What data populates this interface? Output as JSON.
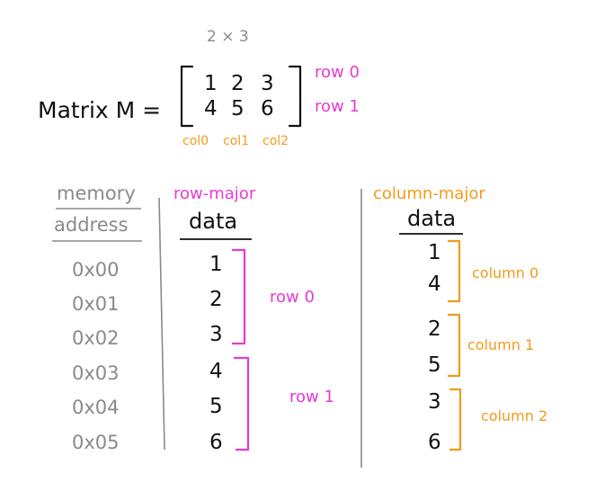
{
  "colors": {
    "ink": "#111111",
    "gray": "#8a8a8a",
    "row_major": "#e83ad0",
    "column_major": "#f29a1c"
  },
  "matrix": {
    "dims": "2 × 3",
    "label": "Matrix M  =",
    "rows": [
      [
        "1",
        "2",
        "3"
      ],
      [
        "4",
        "5",
        "6"
      ]
    ],
    "row_labels": [
      "row 0",
      "row 1"
    ],
    "col_labels": [
      "col0",
      "col1",
      "col2"
    ]
  },
  "memory": {
    "header_line1": "memory",
    "header_line2": "address",
    "addresses": [
      "0x00",
      "0x01",
      "0x02",
      "0x03",
      "0x04",
      "0x05"
    ]
  },
  "row_major": {
    "title": "row-major",
    "header": "data",
    "values": [
      "1",
      "2",
      "3",
      "4",
      "5",
      "6"
    ],
    "groups": [
      "row 0",
      "row 1"
    ]
  },
  "column_major": {
    "title": "column-major",
    "header": "data",
    "values": [
      "1",
      "4",
      "2",
      "5",
      "3",
      "6"
    ],
    "groups": [
      "column 0",
      "column 1",
      "column 2"
    ]
  }
}
